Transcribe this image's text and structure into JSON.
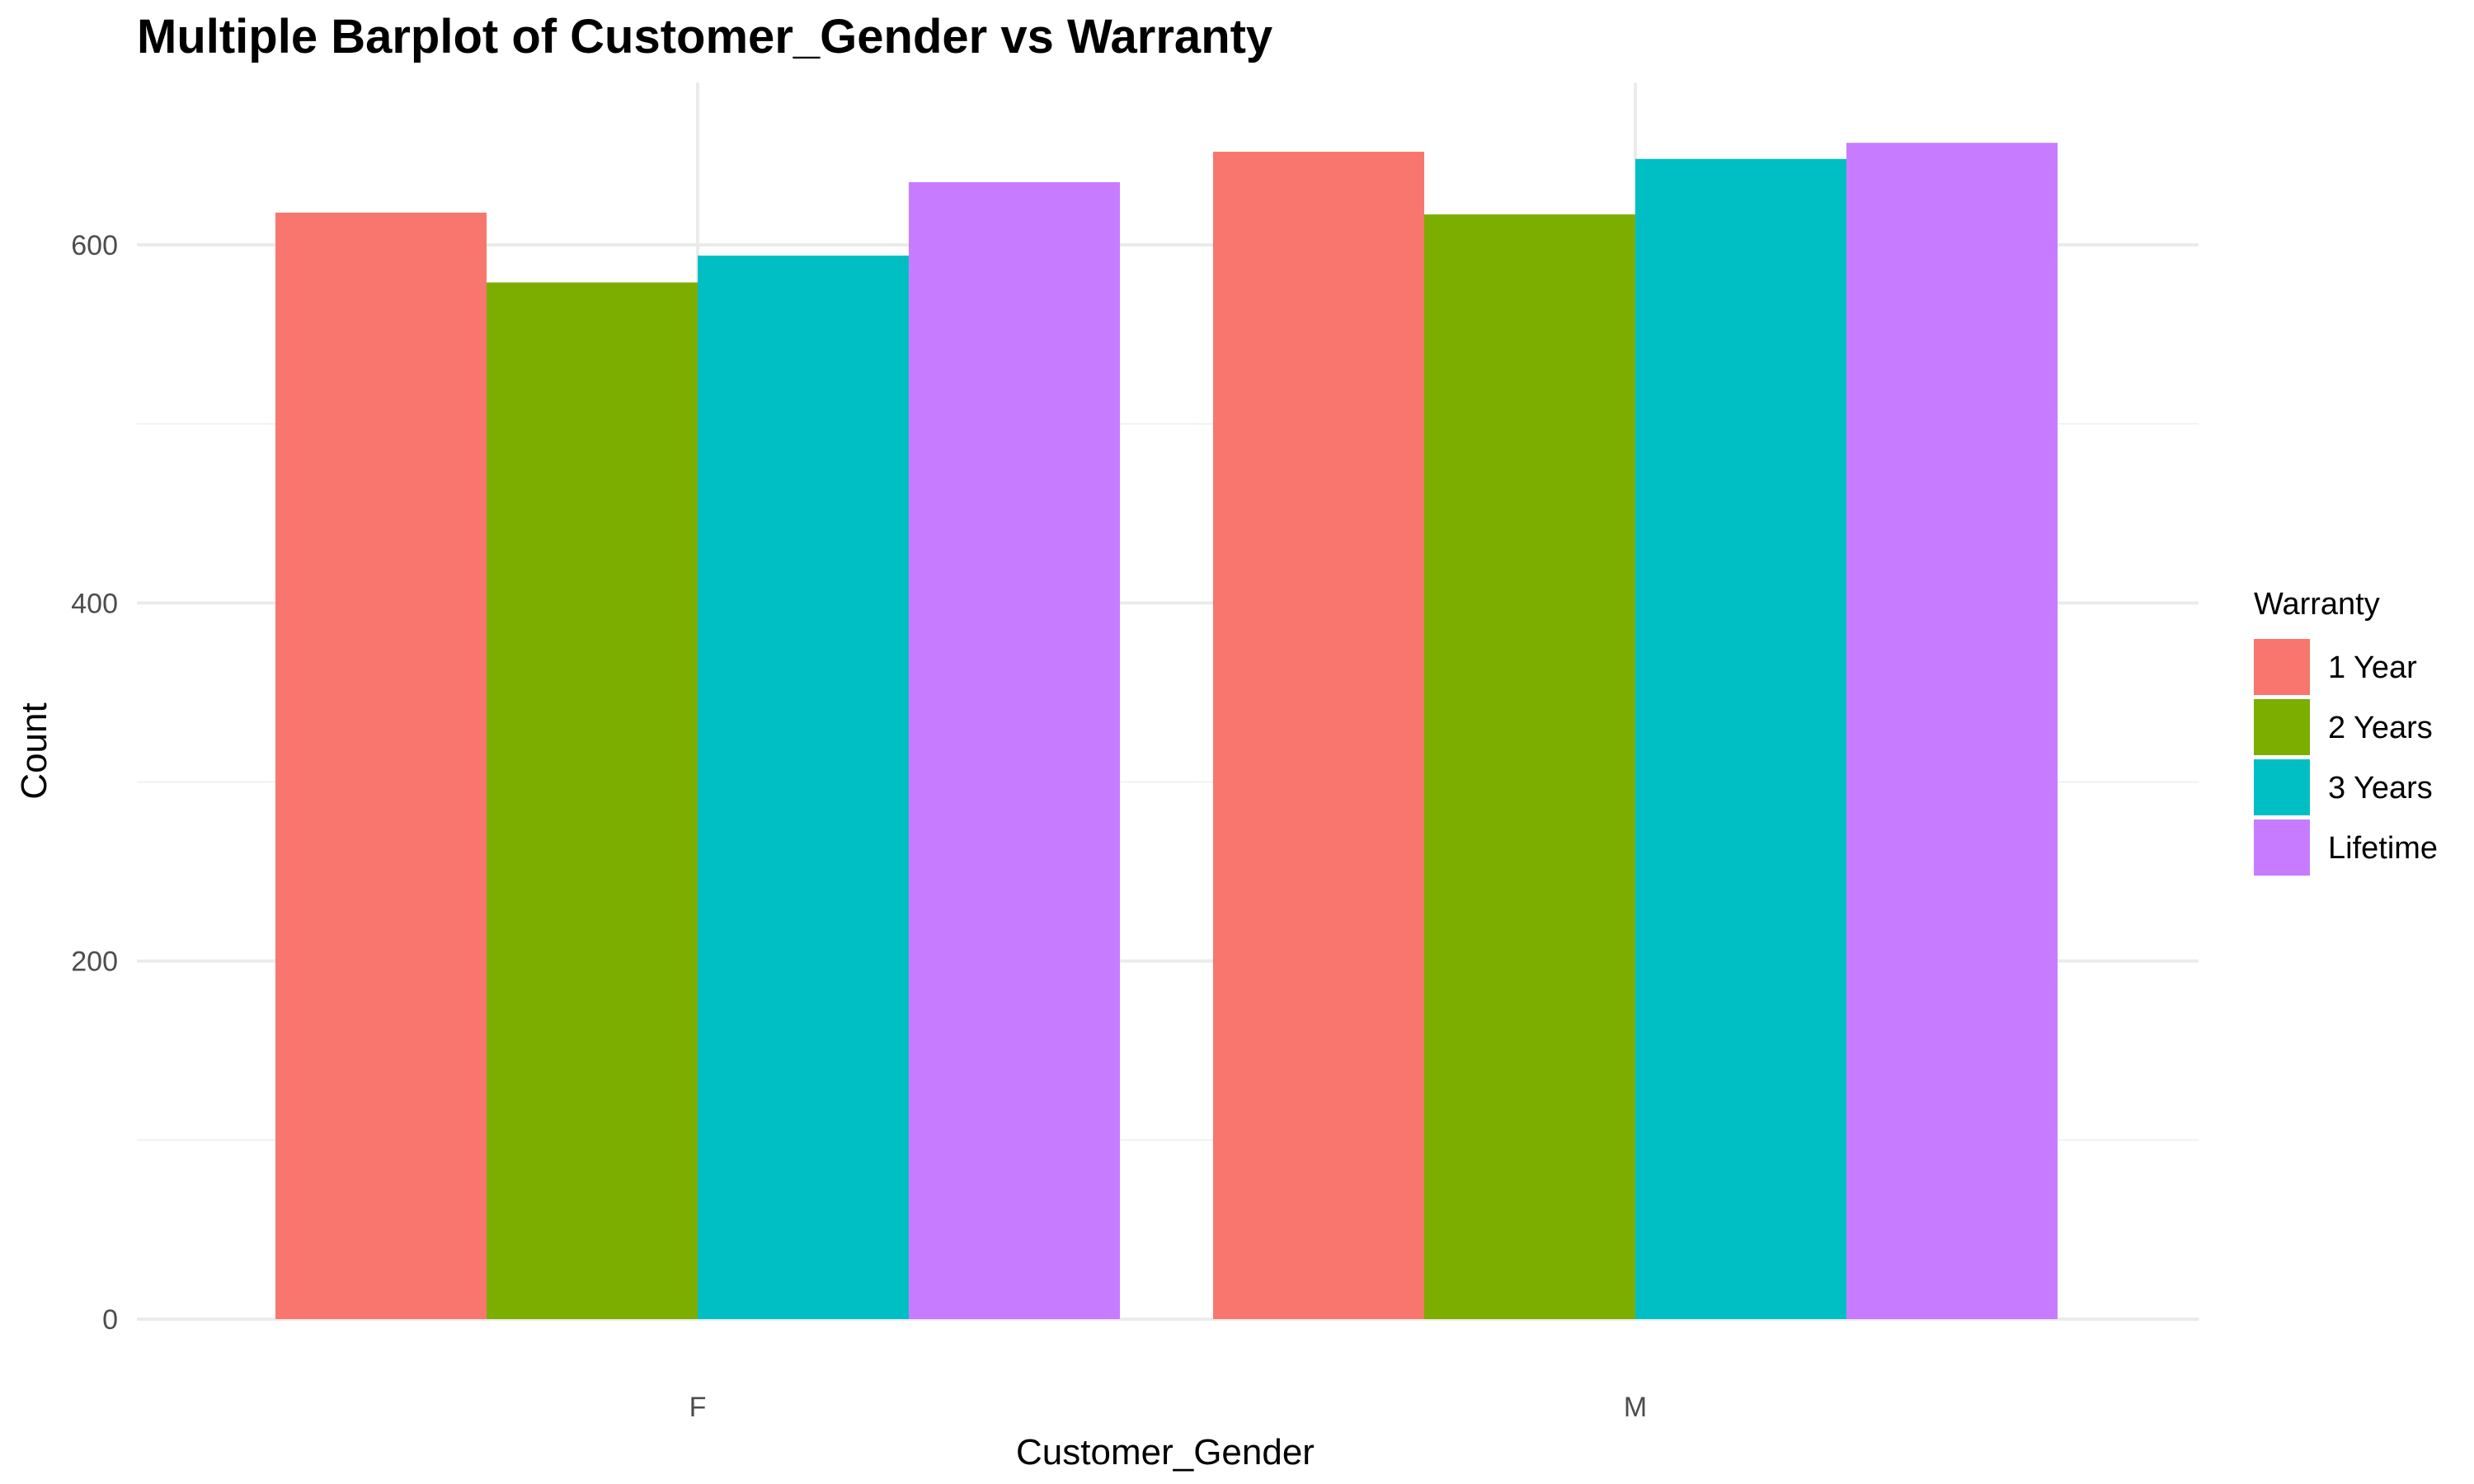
{
  "chart_data": {
    "type": "bar",
    "title": "Multiple Barplot of Customer_Gender vs Warranty",
    "xlabel": "Customer_Gender",
    "ylabel": "Count",
    "categories": [
      "F",
      "M"
    ],
    "series": [
      {
        "name": "1 Year",
        "values": [
          618,
          652
        ],
        "color": "#F8766D"
      },
      {
        "name": "2 Years",
        "values": [
          579,
          617
        ],
        "color": "#7CAE00"
      },
      {
        "name": "3 Years",
        "values": [
          594,
          648
        ],
        "color": "#00BFC4"
      },
      {
        "name": "Lifetime",
        "values": [
          635,
          657
        ],
        "color": "#C77CFF"
      }
    ],
    "ylim": [
      0,
      690
    ],
    "yticks": [
      0,
      200,
      400,
      600
    ],
    "ytick_labels": [
      "0",
      "200",
      "400",
      "600"
    ],
    "grid": true,
    "legend": {
      "title": "Warranty",
      "position": "right"
    }
  }
}
